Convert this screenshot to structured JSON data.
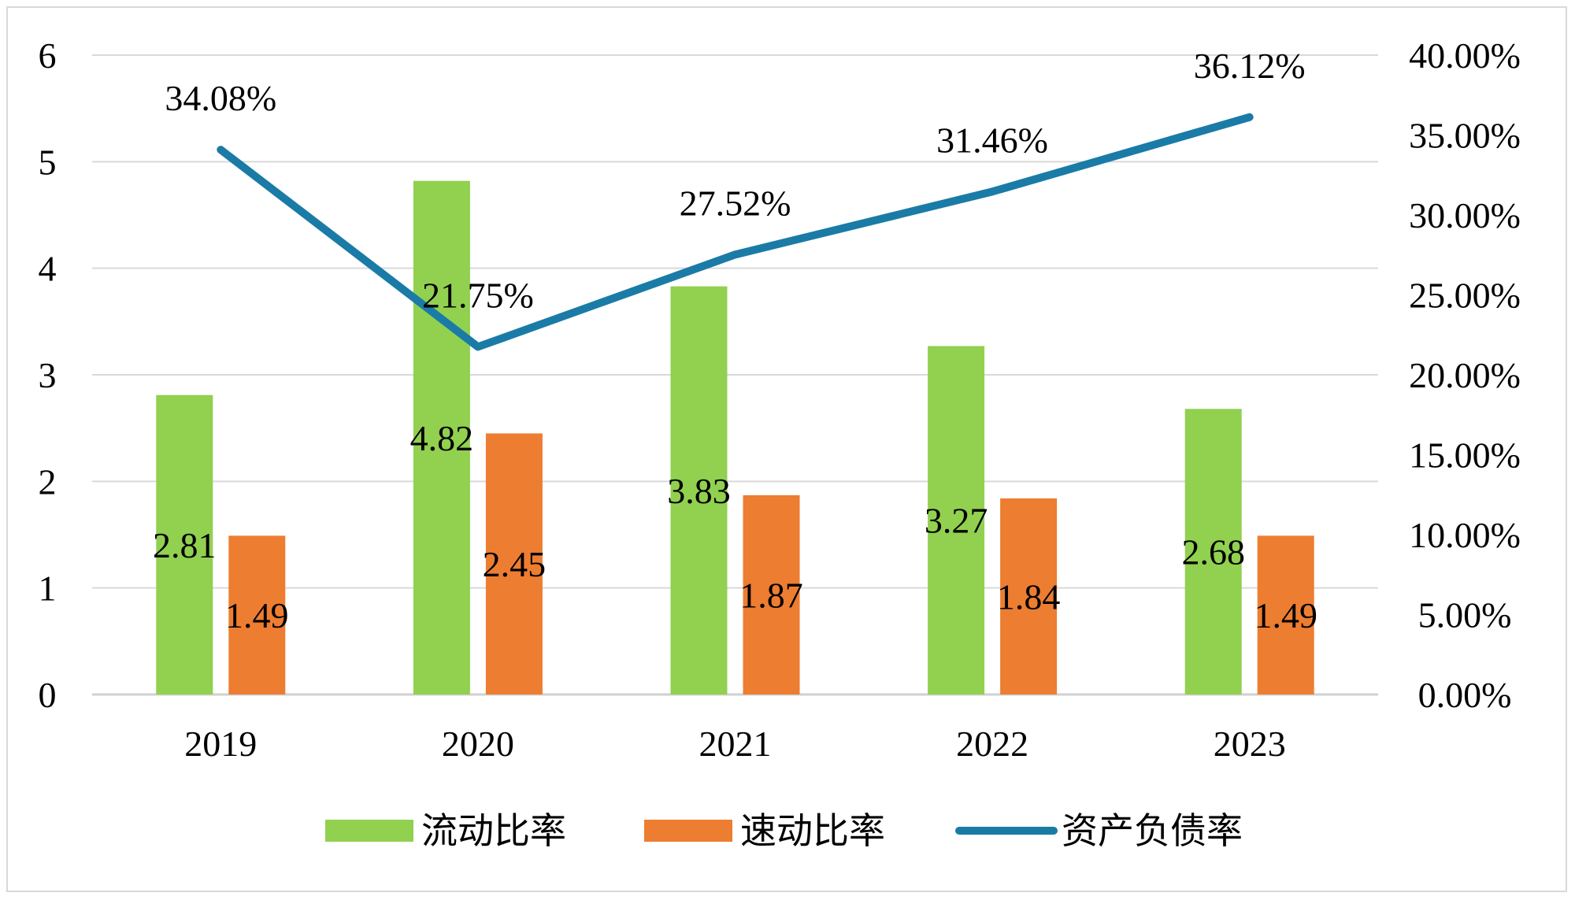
{
  "chart_data": {
    "type": "bar",
    "title": "",
    "categories": [
      "2019",
      "2020",
      "2021",
      "2022",
      "2023"
    ],
    "y_left": {
      "min": 0,
      "max": 6,
      "ticks": [
        "0",
        "1",
        "2",
        "3",
        "4",
        "5",
        "6"
      ]
    },
    "y_right": {
      "min": 0,
      "max": 40,
      "ticks": [
        "0.00%",
        "5.00%",
        "10.00%",
        "15.00%",
        "20.00%",
        "25.00%",
        "30.00%",
        "35.00%",
        "40.00%"
      ]
    },
    "series": [
      {
        "name": "流动比率",
        "type": "bar",
        "axis": "left",
        "color": "#92d050",
        "values": [
          2.81,
          4.82,
          3.83,
          3.27,
          2.68
        ],
        "labels": [
          "2.81",
          "4.82",
          "3.83",
          "3.27",
          "2.68"
        ]
      },
      {
        "name": "速动比率",
        "type": "bar",
        "axis": "left",
        "color": "#ed7d31",
        "values": [
          1.49,
          2.45,
          1.87,
          1.84,
          1.49
        ],
        "labels": [
          "1.49",
          "2.45",
          "1.87",
          "1.84",
          "1.49"
        ]
      },
      {
        "name": "资产负债率",
        "type": "line",
        "axis": "right",
        "color": "#1a7ba6",
        "values": [
          34.08,
          21.75,
          27.52,
          31.46,
          36.12
        ],
        "labels": [
          "34.08%",
          "21.75%",
          "27.52%",
          "31.46%",
          "36.12%"
        ]
      }
    ],
    "legend_position": "bottom",
    "gridlines": true
  }
}
